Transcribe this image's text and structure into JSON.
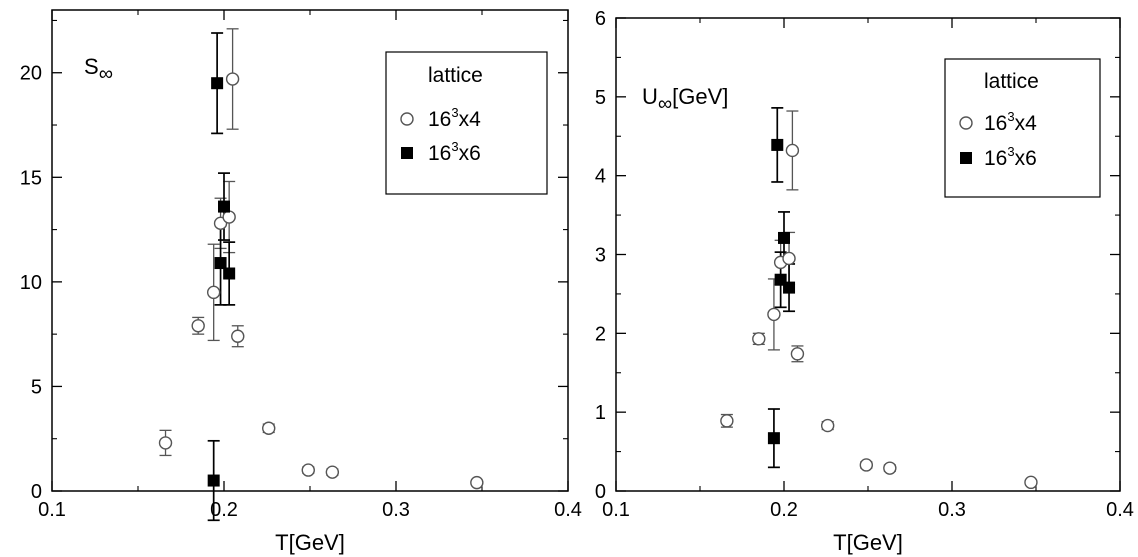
{
  "chart_data": [
    {
      "type": "scatter",
      "panel_label": "S",
      "panel_label_sub": "∞",
      "panel_label_suffix": "",
      "xlabel": "T[GeV]",
      "ylabel": "",
      "xlim": [
        0.1,
        0.4
      ],
      "ylim": [
        0,
        23
      ],
      "x_ticks": [
        0.1,
        0.2,
        0.3,
        0.4
      ],
      "x_tick_labels": [
        "0.1",
        "0.2",
        "0.3",
        "0.4"
      ],
      "y_ticks": [
        0,
        5,
        10,
        15,
        20
      ],
      "y_tick_labels": [
        "0",
        "5",
        "10",
        "15",
        "20"
      ],
      "grid": false,
      "legend": {
        "title": "lattice",
        "placement": "top-right",
        "entries": [
          {
            "base": "16",
            "sup": "3",
            "rest": "x4",
            "marker": "open-circle",
            "color": "#555555"
          },
          {
            "base": "16",
            "sup": "3",
            "rest": "x6",
            "marker": "filled-square",
            "color": "#000000"
          }
        ]
      },
      "series": [
        {
          "marker": "open-circle",
          "color": "#555555",
          "points": [
            {
              "x": 0.166,
              "y": 2.3,
              "err": 0.6
            },
            {
              "x": 0.185,
              "y": 7.9,
              "err": 0.4
            },
            {
              "x": 0.194,
              "y": 9.5,
              "err": 2.3
            },
            {
              "x": 0.198,
              "y": 12.8,
              "err": 1.2
            },
            {
              "x": 0.203,
              "y": 13.1,
              "err": 1.7
            },
            {
              "x": 0.205,
              "y": 19.7,
              "err": 2.4
            },
            {
              "x": 0.208,
              "y": 7.4,
              "err": 0.5
            },
            {
              "x": 0.226,
              "y": 3.0,
              "err": 0.2
            },
            {
              "x": 0.249,
              "y": 1.0,
              "err": 0.15
            },
            {
              "x": 0.263,
              "y": 0.9,
              "err": 0.15
            },
            {
              "x": 0.347,
              "y": 0.4,
              "err": 0.1
            }
          ]
        },
        {
          "marker": "filled-square",
          "color": "#000000",
          "points": [
            {
              "x": 0.194,
              "y": 0.5,
              "err": 1.9
            },
            {
              "x": 0.196,
              "y": 19.5,
              "err": 2.4
            },
            {
              "x": 0.198,
              "y": 10.9,
              "err": 2.0
            },
            {
              "x": 0.2,
              "y": 13.6,
              "err": 1.6
            },
            {
              "x": 0.203,
              "y": 10.4,
              "err": 1.5
            }
          ]
        }
      ]
    },
    {
      "type": "scatter",
      "panel_label": "U",
      "panel_label_sub": "∞",
      "panel_label_suffix": "[GeV]",
      "xlabel": "T[GeV]",
      "ylabel": "",
      "xlim": [
        0.1,
        0.4
      ],
      "ylim": [
        0,
        6
      ],
      "x_ticks": [
        0.1,
        0.2,
        0.3,
        0.4
      ],
      "x_tick_labels": [
        "0.1",
        "0.2",
        "0.3",
        "0.4"
      ],
      "y_ticks": [
        0,
        1,
        2,
        3,
        4,
        5,
        6
      ],
      "y_tick_labels": [
        "0",
        "1",
        "2",
        "3",
        "4",
        "5",
        "6"
      ],
      "grid": false,
      "legend": {
        "title": "lattice",
        "placement": "top-right",
        "entries": [
          {
            "base": "16",
            "sup": "3",
            "rest": "x4",
            "marker": "open-circle",
            "color": "#555555"
          },
          {
            "base": "16",
            "sup": "3",
            "rest": "x6",
            "marker": "filled-square",
            "color": "#000000"
          }
        ]
      },
      "series": [
        {
          "marker": "open-circle",
          "color": "#555555",
          "points": [
            {
              "x": 0.166,
              "y": 0.89,
              "err": 0.08
            },
            {
              "x": 0.185,
              "y": 1.93,
              "err": 0.07
            },
            {
              "x": 0.194,
              "y": 2.24,
              "err": 0.45
            },
            {
              "x": 0.198,
              "y": 2.9,
              "err": 0.28
            },
            {
              "x": 0.203,
              "y": 2.95,
              "err": 0.33
            },
            {
              "x": 0.205,
              "y": 4.32,
              "err": 0.5
            },
            {
              "x": 0.208,
              "y": 1.74,
              "err": 0.1
            },
            {
              "x": 0.226,
              "y": 0.83,
              "err": 0.05
            },
            {
              "x": 0.249,
              "y": 0.33,
              "err": 0.04
            },
            {
              "x": 0.263,
              "y": 0.29,
              "err": 0.04
            },
            {
              "x": 0.347,
              "y": 0.11,
              "err": 0.03
            }
          ]
        },
        {
          "marker": "filled-square",
          "color": "#000000",
          "points": [
            {
              "x": 0.194,
              "y": 0.67,
              "err": 0.37
            },
            {
              "x": 0.196,
              "y": 4.39,
              "err": 0.47
            },
            {
              "x": 0.198,
              "y": 2.68,
              "err": 0.35
            },
            {
              "x": 0.2,
              "y": 3.21,
              "err": 0.33
            },
            {
              "x": 0.203,
              "y": 2.58,
              "err": 0.3
            }
          ]
        }
      ]
    }
  ]
}
